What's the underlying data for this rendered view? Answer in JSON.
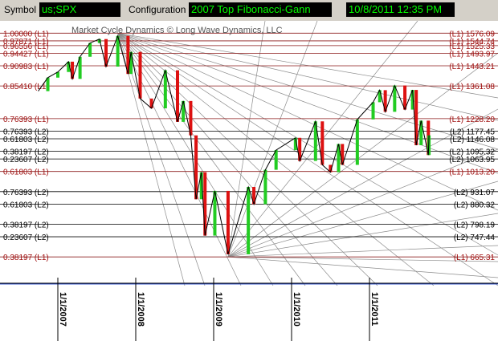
{
  "toolbar": {
    "symbol_label": "Symbol",
    "symbol_value": "us;SPX",
    "configuration_label": "Configuration",
    "configuration_value": "2007 Top Fibonacci-Gann",
    "datetime_value": "10/8/2011 12:35 PM"
  },
  "chart_data": {
    "type": "line",
    "title": "Market Cycle Dynamics © Long Wave Dynamics, LLC",
    "colors": {
      "l1_line": "#8b1a1a",
      "l2_line": "#000000",
      "l1_text": "#a01010",
      "l2_text": "#000000",
      "up_bar": "#22cc22",
      "down_bar": "#dd1111",
      "fan_line": "#8c8c8c",
      "baseline": "#3355cc"
    },
    "ylim": [
      630,
      1600
    ],
    "x_axis_labels": [
      "1/1/2007",
      "1/1/2008",
      "1/1/2009",
      "1/1/2010",
      "1/1/2011"
    ],
    "fib_levels": [
      {
        "left": "1.00000 (L1)",
        "right": "(L1) 1576.09",
        "value": 1576.09,
        "level": "L1"
      },
      {
        "left": "0.97871 (L1)",
        "right": "(L1) 1544.74",
        "value": 1544.74,
        "level": "L1"
      },
      {
        "left": "0.96556 (L1)",
        "right": "(L1) 1525.33",
        "value": 1525.33,
        "level": "L1"
      },
      {
        "left": "0.94427 (L1)",
        "right": "(L1) 1493.97",
        "value": 1493.97,
        "level": "L1"
      },
      {
        "left": "0.90983 (L1)",
        "right": "(L1) 1443.21",
        "value": 1443.21,
        "level": "L1"
      },
      {
        "left": "0.85410 (L1)",
        "right": "(L1) 1361.08",
        "value": 1361.08,
        "level": "L1"
      },
      {
        "left": "0.76393 (L1)",
        "right": "(L1) 1228.20",
        "value": 1228.2,
        "level": "L1"
      },
      {
        "left": "0.76393 (L2)",
        "right": "(L2) 1177.45",
        "value": 1177.45,
        "level": "L2"
      },
      {
        "left": "0.61803 (L2)",
        "right": "(L2) 1146.08",
        "value": 1146.08,
        "level": "L2"
      },
      {
        "left": "0.38197 (L2)",
        "right": "(L2) 1095.32",
        "value": 1095.32,
        "level": "L2"
      },
      {
        "left": "0.23607 (L2)",
        "right": "(L2) 1063.95",
        "value": 1063.95,
        "level": "L2"
      },
      {
        "left": "0.61803 (L1)",
        "right": "(L1) 1013.20",
        "value": 1013.2,
        "level": "L1"
      },
      {
        "left": "0.76393 (L2)",
        "right": "(L2) 931.07",
        "value": 931.07,
        "level": "L2"
      },
      {
        "left": "0.61803 (L2)",
        "right": "(L2) 880.32",
        "value": 880.32,
        "level": "L2"
      },
      {
        "left": "0.38197 (L2)",
        "right": "(L2) 798.19",
        "value": 798.19,
        "level": "L2"
      },
      {
        "left": "0.23607 (L2)",
        "right": "(L2) 747.44",
        "value": 747.44,
        "level": "L2"
      },
      {
        "left": "0.38197 (L1)",
        "right": "(L1) 665.31",
        "value": 665.31,
        "level": "L1"
      }
    ],
    "series": [
      {
        "x": [
          "2006-10-01",
          "2006-11-15",
          "2007-01-01",
          "2007-02-20",
          "2007-03-10",
          "2007-04-15",
          "2007-06-01",
          "2007-07-15",
          "2007-08-15",
          "2007-10-09",
          "2007-11-26",
          "2007-12-10",
          "2008-01-22",
          "2008-03-15",
          "2008-05-19",
          "2008-07-15",
          "2008-08-11",
          "2008-09-15",
          "2008-10-10",
          "2008-11-04",
          "2008-11-21",
          "2009-01-06",
          "2009-03-09",
          "2009-06-12",
          "2009-07-08",
          "2009-08-31",
          "2009-10-20",
          "2010-01-19",
          "2010-02-08",
          "2010-04-23",
          "2010-05-25",
          "2010-07-02",
          "2010-08-09",
          "2010-08-27",
          "2010-11-05",
          "2011-01-18",
          "2011-02-18",
          "2011-03-16",
          "2011-04-29",
          "2011-06-16",
          "2011-07-22",
          "2011-08-08",
          "2011-08-31",
          "2011-10-04",
          "2011-10-07"
        ],
        "values": [
          1340,
          1395,
          1418,
          1460,
          1390,
          1480,
          1536,
          1552,
          1440,
          1565,
          1410,
          1500,
          1310,
          1270,
          1425,
          1215,
          1300,
          1160,
          900,
          1010,
          752,
          934,
          676,
          950,
          880,
          1020,
          1100,
          1150,
          1056,
          1217,
          1040,
          1010,
          1125,
          1040,
          1225,
          1295,
          1344,
          1256,
          1363,
          1265,
          1345,
          1120,
          1220,
          1080,
          1160
        ]
      }
    ]
  }
}
